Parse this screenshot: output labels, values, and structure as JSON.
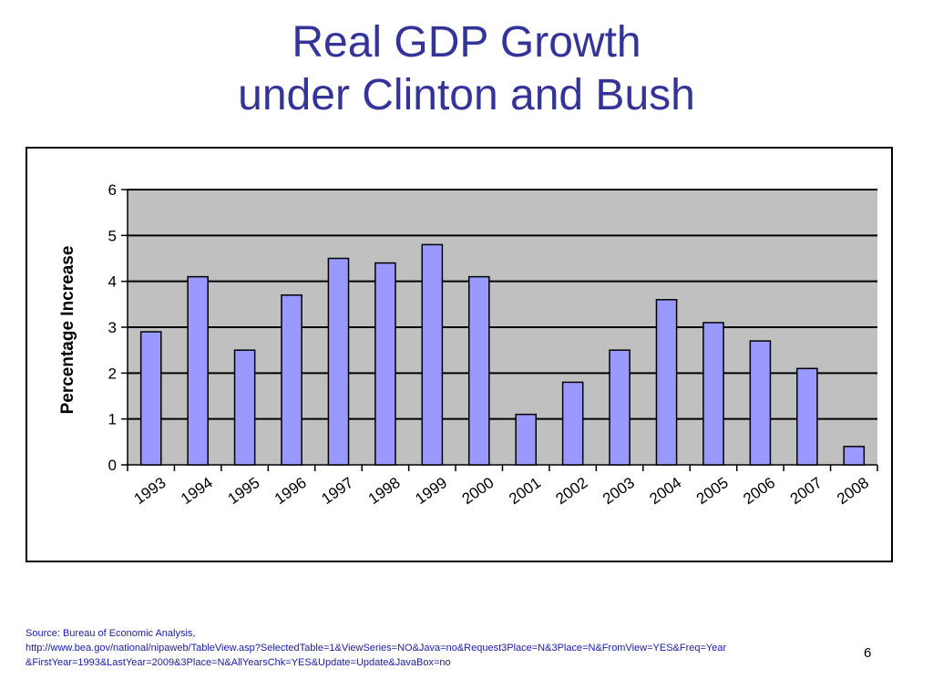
{
  "slide": {
    "title_line1": "Real GDP Growth",
    "title_line2": "under Clinton and Bush",
    "title_color": "#333399",
    "source_line1": "Source:  Bureau of Economic Analysis,",
    "source_line2": "http://www.bea.gov/national/nipaweb/TableView.asp?SelectedTable=1&ViewSeries=NO&Java=no&Request3Place=N&3Place=N&FromView=YES&Freq=Year",
    "source_line3": "&FirstYear=1993&LastYear=2009&3Place=N&AllYearsChk=YES&Update=Update&JavaBox=no",
    "source_color": "#1a1aa6",
    "page_number": "6"
  },
  "chart_data": {
    "type": "bar",
    "title": "",
    "xlabel": "",
    "ylabel": "Percentage Increase",
    "ylim": [
      0,
      6
    ],
    "yticks": [
      "0",
      "1",
      "2",
      "3",
      "4",
      "5",
      "6"
    ],
    "grid": "horizontal",
    "legend": "none",
    "plot_background": "#c0c0c0",
    "bar_color": "#9999ff",
    "categories": [
      "1993",
      "1994",
      "1995",
      "1996",
      "1997",
      "1998",
      "1999",
      "2000",
      "2001",
      "2002",
      "2003",
      "2004",
      "2005",
      "2006",
      "2007",
      "2008"
    ],
    "values": [
      2.9,
      4.1,
      2.5,
      3.7,
      4.5,
      4.4,
      4.8,
      4.1,
      1.1,
      1.8,
      2.5,
      3.6,
      3.1,
      2.7,
      2.1,
      0.4
    ]
  }
}
